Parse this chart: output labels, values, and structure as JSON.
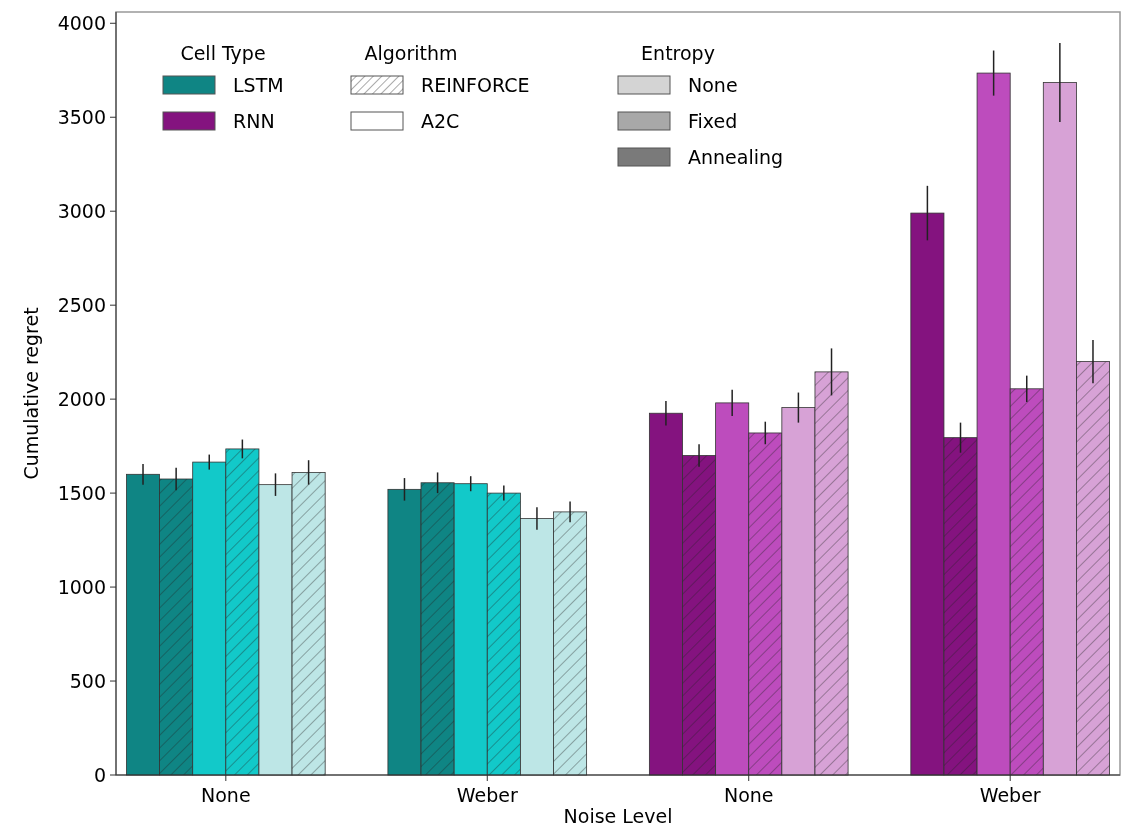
{
  "chart_data": {
    "type": "bar",
    "xlabel": "Noise Level",
    "ylabel": "Cumulative regret",
    "categories": [
      "None",
      "Weber",
      "None",
      "Weber"
    ],
    "ylim": [
      0,
      4060
    ],
    "yticks": [
      0,
      500,
      1000,
      1500,
      2000,
      2500,
      3000,
      3500,
      4000
    ],
    "grid": false,
    "annotations": [
      "Cell Type",
      "LSTM",
      "RNN",
      "Algorithm",
      "REINFORCE",
      "A2C",
      "Entropy",
      "None",
      "Fixed",
      "Annealing"
    ],
    "series": [
      {
        "colors": [
          "#0f8584",
          "#0f8584",
          "#84137f",
          "#84137f"
        ],
        "values": [
          1600,
          1520,
          1925,
          2990
        ],
        "errors": [
          55,
          60,
          65,
          145
        ]
      },
      {
        "colors": [
          "#0f8584",
          "#0f8584",
          "#84137f",
          "#84137f"
        ],
        "values": [
          1575,
          1555,
          1700,
          1795
        ],
        "errors": [
          60,
          55,
          60,
          80
        ]
      },
      {
        "colors": [
          "#12c9c9",
          "#12c9c9",
          "#bd4cbd",
          "#bd4cbd"
        ],
        "values": [
          1665,
          1550,
          1980,
          3735
        ],
        "errors": [
          40,
          40,
          70,
          120
        ]
      },
      {
        "colors": [
          "#12c9c9",
          "#12c9c9",
          "#bd4cbd",
          "#bd4cbd"
        ],
        "values": [
          1735,
          1500,
          1820,
          2055
        ],
        "errors": [
          50,
          40,
          60,
          70
        ]
      },
      {
        "colors": [
          "#bde6e6",
          "#bde6e6",
          "#d7a2d6",
          "#d7a2d6"
        ],
        "values": [
          1545,
          1365,
          1955,
          3685
        ],
        "errors": [
          60,
          60,
          80,
          210
        ]
      },
      {
        "colors": [
          "#bde6e6",
          "#bde6e6",
          "#d7a2d6",
          "#d7a2d6"
        ],
        "values": [
          1610,
          1400,
          2145,
          2200
        ],
        "errors": [
          65,
          55,
          125,
          115
        ]
      }
    ]
  }
}
